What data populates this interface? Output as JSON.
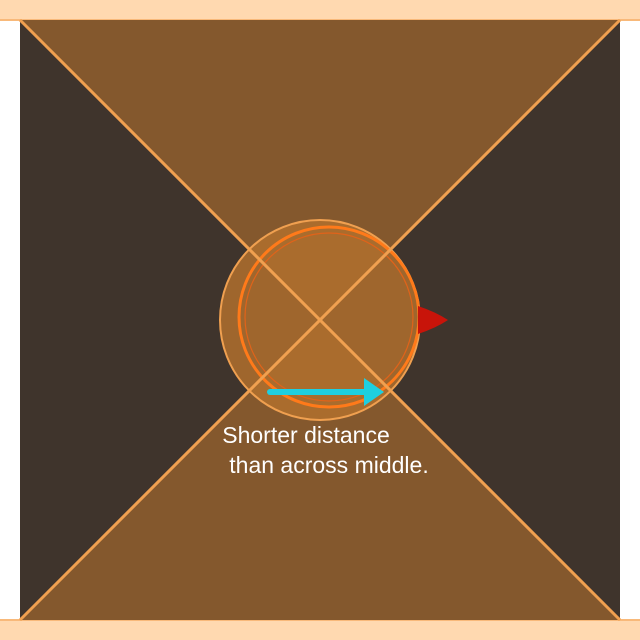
{
  "diagram": {
    "caption_line_1": "Shorter distance",
    "caption_line_2": "than across middle.",
    "colors": {
      "background": "#3f342c",
      "frame_strip": "#ffd9b0",
      "frame_edge": "#f8b97a",
      "top_bottom_triangles": "#84582d",
      "diagonal_lines": "#f0a050",
      "circle_fill": "#b0702e",
      "circle_outline": "#ff7a1a",
      "circle_inner_ring": "#e0631a",
      "circle_halo": "#f0a050",
      "arrow": "#1ecfe0",
      "marker": "#c8140a"
    }
  }
}
